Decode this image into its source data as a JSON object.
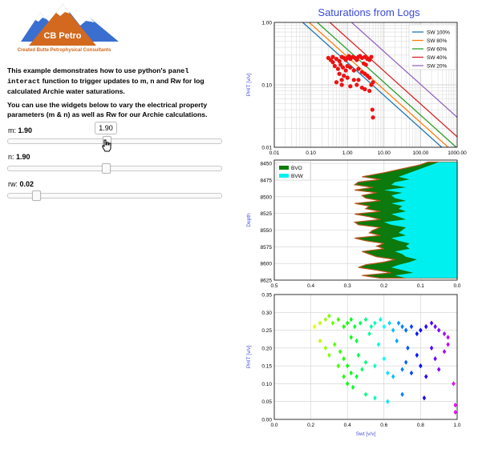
{
  "logo": {
    "brand": "CB Petro",
    "tagline": "Created Butte Petrophysical Consultants"
  },
  "description": {
    "p1_a": "This example demonstrates how to use python's ",
    "p1_code1": "panel",
    "p1_code2": "interact",
    "p1_b": " function to trigger updates to m, n and Rw for log calculated Archie water saturations.",
    "p2": "You can use the widgets below to vary the electrical property parameters (m & n) as well as Rw for our Archie calculations."
  },
  "sliders": [
    {
      "label": "m: ",
      "value_text": "1.90",
      "value": 1.9,
      "tooltip": "1.90"
    },
    {
      "label": "n: ",
      "value_text": "1.90",
      "value": 1.9
    },
    {
      "label": "rw: ",
      "value_text": "0.02",
      "value": 0.02
    }
  ],
  "colors": {
    "title_blue": "#3b4bd6",
    "axis_label_blue": "#4a52e0",
    "bvo_green": "#0c7a0c",
    "bvw_cyan": "#00f0f0",
    "points_red": "#ee1111"
  },
  "chart_data": [
    {
      "type": "scatter",
      "title": "Saturations from Logs",
      "xscale": "log",
      "yscale": "log",
      "xlim": [
        0.01,
        1000
      ],
      "ylim": [
        0.01,
        1.0
      ],
      "xticks": [
        "0.01",
        "0.10",
        "1.00",
        "10.00",
        "100.00",
        "1000.00"
      ],
      "yticks": [
        "0.01",
        "0.10",
        "1.00"
      ],
      "ylabel": "PHIT [v/v]",
      "legend_position": "top-right",
      "grid": true,
      "lines": [
        {
          "name": "SW 100%",
          "color": "#1f77b4",
          "x_at_phi_1": 0.06
        },
        {
          "name": "SW 80%",
          "color": "#ff7f0e",
          "x_at_phi_1": 0.09
        },
        {
          "name": "SW 60%",
          "color": "#2ca02c",
          "x_at_phi_1": 0.15
        },
        {
          "name": "SW 40%",
          "color": "#d62728",
          "x_at_phi_1": 0.33
        },
        {
          "name": "SW 20%",
          "color": "#9467bd",
          "x_at_phi_1": 1.3
        }
      ],
      "points": [
        [
          0.3,
          0.27
        ],
        [
          0.35,
          0.25
        ],
        [
          0.4,
          0.28
        ],
        [
          0.5,
          0.26
        ],
        [
          0.6,
          0.24
        ],
        [
          0.7,
          0.28
        ],
        [
          0.8,
          0.27
        ],
        [
          0.9,
          0.25
        ],
        [
          1.0,
          0.27
        ],
        [
          1.1,
          0.29
        ],
        [
          1.2,
          0.26
        ],
        [
          1.4,
          0.28
        ],
        [
          1.6,
          0.27
        ],
        [
          1.8,
          0.25
        ],
        [
          2.0,
          0.28
        ],
        [
          2.2,
          0.29
        ],
        [
          2.5,
          0.27
        ],
        [
          3.0,
          0.28
        ],
        [
          3.5,
          0.26
        ],
        [
          4.0,
          0.25
        ],
        [
          4.5,
          0.28
        ],
        [
          0.45,
          0.2
        ],
        [
          0.55,
          0.18
        ],
        [
          0.65,
          0.21
        ],
        [
          0.75,
          0.19
        ],
        [
          0.9,
          0.17
        ],
        [
          1.0,
          0.2
        ],
        [
          1.2,
          0.19
        ],
        [
          1.5,
          0.17
        ],
        [
          2.0,
          0.18
        ],
        [
          2.5,
          0.16
        ],
        [
          3.0,
          0.15
        ],
        [
          3.5,
          0.14
        ],
        [
          4.0,
          0.13
        ],
        [
          0.6,
          0.15
        ],
        [
          0.8,
          0.14
        ],
        [
          1.0,
          0.13
        ],
        [
          1.5,
          0.12
        ],
        [
          2.0,
          0.12
        ],
        [
          0.5,
          0.11
        ],
        [
          0.7,
          0.1
        ],
        [
          1.2,
          0.095
        ],
        [
          1.8,
          0.1
        ],
        [
          2.5,
          0.09
        ],
        [
          3.0,
          0.085
        ],
        [
          4.0,
          0.08
        ],
        [
          4.5,
          0.1
        ],
        [
          5.0,
          0.11
        ],
        [
          0.7,
          0.12
        ],
        [
          2.8,
          0.22
        ],
        [
          3.2,
          0.21
        ],
        [
          0.4,
          0.23
        ],
        [
          4.8,
          0.04
        ],
        [
          5.0,
          0.03
        ]
      ]
    },
    {
      "type": "area",
      "xlim": [
        0.5,
        0.0
      ],
      "ylim": [
        8625,
        8445
      ],
      "xticks": [
        "0.5",
        "0.4",
        "0.3",
        "0.2",
        "0.1",
        "0.0"
      ],
      "yticks": [
        "8450",
        "8475",
        "8500",
        "8525",
        "8550",
        "8575",
        "8600",
        "8625"
      ],
      "ylabel": "Depth",
      "legend_position": "top-left",
      "series": [
        {
          "name": "BVO",
          "color": "#0c7a0c"
        },
        {
          "name": "BVW",
          "color": "#00f0f0"
        }
      ],
      "depth": [
        8448,
        8452,
        8458,
        8464,
        8470,
        8474,
        8478,
        8482,
        8486,
        8490,
        8494,
        8498,
        8502,
        8506,
        8510,
        8514,
        8518,
        8522,
        8526,
        8530,
        8534,
        8538,
        8542,
        8546,
        8550,
        8554,
        8558,
        8562,
        8566,
        8570,
        8574,
        8578,
        8582,
        8586,
        8590,
        8594,
        8598,
        8602,
        8606,
        8610,
        8614,
        8618,
        8622
      ],
      "phit": [
        0.08,
        0.1,
        0.15,
        0.2,
        0.26,
        0.21,
        0.27,
        0.28,
        0.23,
        0.28,
        0.22,
        0.26,
        0.25,
        0.21,
        0.28,
        0.24,
        0.25,
        0.21,
        0.28,
        0.24,
        0.21,
        0.28,
        0.27,
        0.21,
        0.23,
        0.24,
        0.21,
        0.28,
        0.25,
        0.2,
        0.22,
        0.2,
        0.26,
        0.24,
        0.22,
        0.17,
        0.2,
        0.25,
        0.27,
        0.22,
        0.18,
        0.26,
        0.21
      ],
      "bvw": [
        0.05,
        0.07,
        0.1,
        0.13,
        0.16,
        0.13,
        0.17,
        0.18,
        0.14,
        0.2,
        0.15,
        0.18,
        0.17,
        0.14,
        0.18,
        0.15,
        0.16,
        0.14,
        0.18,
        0.16,
        0.14,
        0.2,
        0.18,
        0.14,
        0.15,
        0.16,
        0.14,
        0.18,
        0.16,
        0.13,
        0.14,
        0.13,
        0.17,
        0.15,
        0.14,
        0.11,
        0.13,
        0.16,
        0.18,
        0.15,
        0.12,
        0.17,
        0.14
      ]
    },
    {
      "type": "scatter",
      "xlim": [
        0.0,
        1.0
      ],
      "ylim": [
        0.0,
        0.35
      ],
      "xticks": [
        "0.0",
        "0.2",
        "0.4",
        "0.6",
        "0.8",
        "1.0"
      ],
      "yticks": [
        "0.00",
        "0.05",
        "0.10",
        "0.15",
        "0.20",
        "0.25",
        "0.30",
        "0.35"
      ],
      "xlabel": "Swt [v/v]",
      "ylabel": "PHIT [v/v]",
      "colormap": "hsv by depth",
      "points": [
        [
          0.22,
          0.26
        ],
        [
          0.25,
          0.27
        ],
        [
          0.28,
          0.28
        ],
        [
          0.3,
          0.29
        ],
        [
          0.32,
          0.27
        ],
        [
          0.35,
          0.28
        ],
        [
          0.38,
          0.26
        ],
        [
          0.4,
          0.27
        ],
        [
          0.42,
          0.28
        ],
        [
          0.44,
          0.26
        ],
        [
          0.47,
          0.27
        ],
        [
          0.5,
          0.28
        ],
        [
          0.53,
          0.26
        ],
        [
          0.55,
          0.27
        ],
        [
          0.58,
          0.28
        ],
        [
          0.6,
          0.26
        ],
        [
          0.63,
          0.27
        ],
        [
          0.65,
          0.25
        ],
        [
          0.68,
          0.27
        ],
        [
          0.7,
          0.26
        ],
        [
          0.72,
          0.25
        ],
        [
          0.75,
          0.26
        ],
        [
          0.78,
          0.24
        ],
        [
          0.8,
          0.25
        ],
        [
          0.83,
          0.26
        ],
        [
          0.86,
          0.27
        ],
        [
          0.88,
          0.26
        ],
        [
          0.9,
          0.25
        ],
        [
          0.93,
          0.24
        ],
        [
          0.95,
          0.23
        ],
        [
          0.25,
          0.22
        ],
        [
          0.28,
          0.2
        ],
        [
          0.3,
          0.18
        ],
        [
          0.33,
          0.21
        ],
        [
          0.36,
          0.19
        ],
        [
          0.38,
          0.17
        ],
        [
          0.4,
          0.15
        ],
        [
          0.42,
          0.13
        ],
        [
          0.38,
          0.12
        ],
        [
          0.4,
          0.1
        ],
        [
          0.43,
          0.09
        ],
        [
          0.45,
          0.12
        ],
        [
          0.48,
          0.14
        ],
        [
          0.5,
          0.16
        ],
        [
          0.55,
          0.15
        ],
        [
          0.6,
          0.17
        ],
        [
          0.62,
          0.13
        ],
        [
          0.65,
          0.12
        ],
        [
          0.7,
          0.14
        ],
        [
          0.72,
          0.16
        ],
        [
          0.75,
          0.13
        ],
        [
          0.78,
          0.18
        ],
        [
          0.8,
          0.15
        ],
        [
          0.83,
          0.12
        ],
        [
          0.86,
          0.2
        ],
        [
          0.88,
          0.17
        ],
        [
          0.9,
          0.14
        ],
        [
          0.93,
          0.19
        ],
        [
          0.95,
          0.21
        ],
        [
          0.98,
          0.1
        ],
        [
          0.5,
          0.07
        ],
        [
          0.55,
          0.06
        ],
        [
          0.62,
          0.05
        ],
        [
          0.7,
          0.07
        ],
        [
          0.82,
          0.06
        ],
        [
          0.99,
          0.02
        ],
        [
          0.99,
          0.04
        ],
        [
          0.42,
          0.23
        ],
        [
          0.45,
          0.22
        ],
        [
          0.52,
          0.24
        ],
        [
          0.57,
          0.21
        ],
        [
          0.67,
          0.22
        ],
        [
          0.73,
          0.2
        ],
        [
          0.35,
          0.15
        ],
        [
          0.46,
          0.18
        ]
      ]
    }
  ]
}
